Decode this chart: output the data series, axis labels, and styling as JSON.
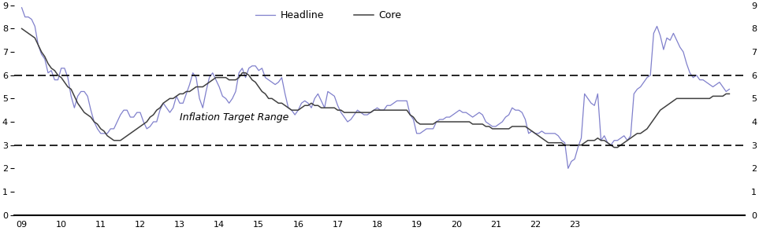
{
  "headline_color": "#8080cc",
  "core_color": "#404040",
  "target_line_color": "#000000",
  "annotation_text": "Inflation Target Range",
  "annotation_fontsize": 9,
  "legend_fontsize": 9,
  "ylim": [
    0,
    9
  ],
  "yticks": [
    0,
    1,
    2,
    3,
    4,
    5,
    6,
    7,
    8,
    9
  ],
  "target_low": 3,
  "target_high": 6,
  "start_year": 2009,
  "start_month": 1,
  "headline": [
    8.9,
    8.5,
    8.5,
    8.4,
    8.1,
    7.3,
    6.9,
    6.7,
    6.1,
    6.2,
    5.8,
    5.8,
    6.3,
    6.3,
    5.9,
    5.1,
    4.6,
    5.1,
    5.3,
    5.3,
    5.1,
    4.5,
    4.0,
    3.7,
    3.5,
    3.5,
    3.5,
    3.7,
    3.7,
    4.0,
    4.3,
    4.5,
    4.5,
    4.2,
    4.2,
    4.4,
    4.4,
    4.0,
    3.7,
    3.8,
    4.0,
    4.0,
    4.5,
    4.8,
    4.6,
    4.4,
    4.6,
    5.1,
    4.8,
    4.8,
    5.2,
    5.6,
    6.1,
    5.9,
    5.0,
    4.6,
    5.3,
    5.9,
    6.1,
    5.8,
    5.5,
    5.1,
    5.0,
    4.8,
    5.0,
    5.3,
    6.1,
    6.3,
    5.9,
    6.3,
    6.4,
    6.4,
    6.2,
    6.3,
    5.9,
    5.8,
    5.7,
    5.6,
    5.7,
    5.9,
    5.2,
    4.6,
    4.5,
    4.3,
    4.5,
    4.8,
    4.9,
    4.8,
    4.6,
    5.0,
    5.2,
    4.9,
    4.6,
    5.3,
    5.2,
    5.1,
    4.7,
    4.4,
    4.2,
    4.0,
    4.1,
    4.3,
    4.5,
    4.4,
    4.3,
    4.3,
    4.4,
    4.5,
    4.6,
    4.5,
    4.5,
    4.7,
    4.7,
    4.8,
    4.9,
    4.9,
    4.9,
    4.9,
    4.3,
    4.1,
    3.5,
    3.5,
    3.6,
    3.7,
    3.7,
    3.7,
    4.0,
    4.1,
    4.1,
    4.2,
    4.2,
    4.3,
    4.4,
    4.5,
    4.4,
    4.4,
    4.3,
    4.2,
    4.3,
    4.4,
    4.3,
    4.0,
    3.9,
    3.8,
    3.8,
    3.9,
    4.0,
    4.2,
    4.3,
    4.6,
    4.5,
    4.5,
    4.4,
    4.1,
    3.5,
    3.6,
    3.5,
    3.5,
    3.6,
    3.5,
    3.5,
    3.5,
    3.5,
    3.4,
    3.2,
    3.1,
    2.0,
    2.3,
    2.4,
    2.9,
    3.3,
    5.2,
    5.0,
    4.8,
    4.7,
    5.2,
    3.2,
    3.4,
    3.1,
    3.0,
    3.2,
    3.2,
    3.3,
    3.4,
    3.2,
    3.4,
    5.2,
    5.4,
    5.5,
    5.7,
    5.9,
    6.0,
    7.8,
    8.1,
    7.7,
    7.1,
    7.6,
    7.5,
    7.8,
    7.5,
    7.2,
    7.0,
    6.5,
    6.1,
    5.9,
    6.0,
    5.8,
    5.8,
    5.7,
    5.6,
    5.5,
    5.6,
    5.7,
    5.5,
    5.3,
    5.4
  ],
  "core": [
    8.0,
    7.9,
    7.8,
    7.7,
    7.6,
    7.3,
    7.0,
    6.8,
    6.5,
    6.3,
    6.2,
    6.0,
    5.9,
    5.7,
    5.5,
    5.4,
    5.1,
    4.8,
    4.6,
    4.4,
    4.3,
    4.2,
    4.0,
    3.9,
    3.7,
    3.6,
    3.4,
    3.3,
    3.2,
    3.2,
    3.2,
    3.3,
    3.4,
    3.5,
    3.6,
    3.7,
    3.8,
    3.9,
    4.0,
    4.2,
    4.3,
    4.5,
    4.6,
    4.8,
    4.9,
    5.0,
    5.0,
    5.1,
    5.2,
    5.2,
    5.3,
    5.3,
    5.4,
    5.5,
    5.5,
    5.5,
    5.6,
    5.7,
    5.8,
    5.9,
    5.9,
    5.9,
    5.9,
    5.8,
    5.8,
    5.8,
    5.9,
    6.1,
    6.1,
    6.0,
    5.8,
    5.7,
    5.5,
    5.3,
    5.2,
    5.0,
    5.0,
    4.9,
    4.8,
    4.8,
    4.7,
    4.6,
    4.5,
    4.5,
    4.5,
    4.6,
    4.7,
    4.7,
    4.8,
    4.7,
    4.7,
    4.6,
    4.6,
    4.6,
    4.6,
    4.6,
    4.5,
    4.5,
    4.4,
    4.4,
    4.4,
    4.4,
    4.4,
    4.4,
    4.4,
    4.4,
    4.4,
    4.5,
    4.5,
    4.5,
    4.5,
    4.5,
    4.5,
    4.5,
    4.5,
    4.5,
    4.5,
    4.5,
    4.3,
    4.2,
    4.0,
    3.9,
    3.9,
    3.9,
    3.9,
    3.9,
    4.0,
    4.0,
    4.0,
    4.0,
    4.0,
    4.0,
    4.0,
    4.0,
    4.0,
    4.0,
    4.0,
    3.9,
    3.9,
    3.9,
    3.9,
    3.8,
    3.8,
    3.7,
    3.7,
    3.7,
    3.7,
    3.7,
    3.7,
    3.8,
    3.8,
    3.8,
    3.8,
    3.8,
    3.7,
    3.6,
    3.5,
    3.4,
    3.3,
    3.2,
    3.1,
    3.1,
    3.1,
    3.1,
    3.1,
    3.0,
    3.0,
    3.0,
    3.0,
    3.0,
    3.0,
    3.1,
    3.2,
    3.2,
    3.2,
    3.3,
    3.2,
    3.2,
    3.1,
    3.0,
    2.9,
    2.9,
    3.0,
    3.1,
    3.2,
    3.3,
    3.4,
    3.5,
    3.5,
    3.6,
    3.7,
    3.9,
    4.1,
    4.3,
    4.5,
    4.6,
    4.7,
    4.8,
    4.9,
    5.0,
    5.0,
    5.0,
    5.0,
    5.0,
    5.0,
    5.0,
    5.0,
    5.0,
    5.0,
    5.0,
    5.1,
    5.1,
    5.1,
    5.1,
    5.2,
    5.2
  ]
}
